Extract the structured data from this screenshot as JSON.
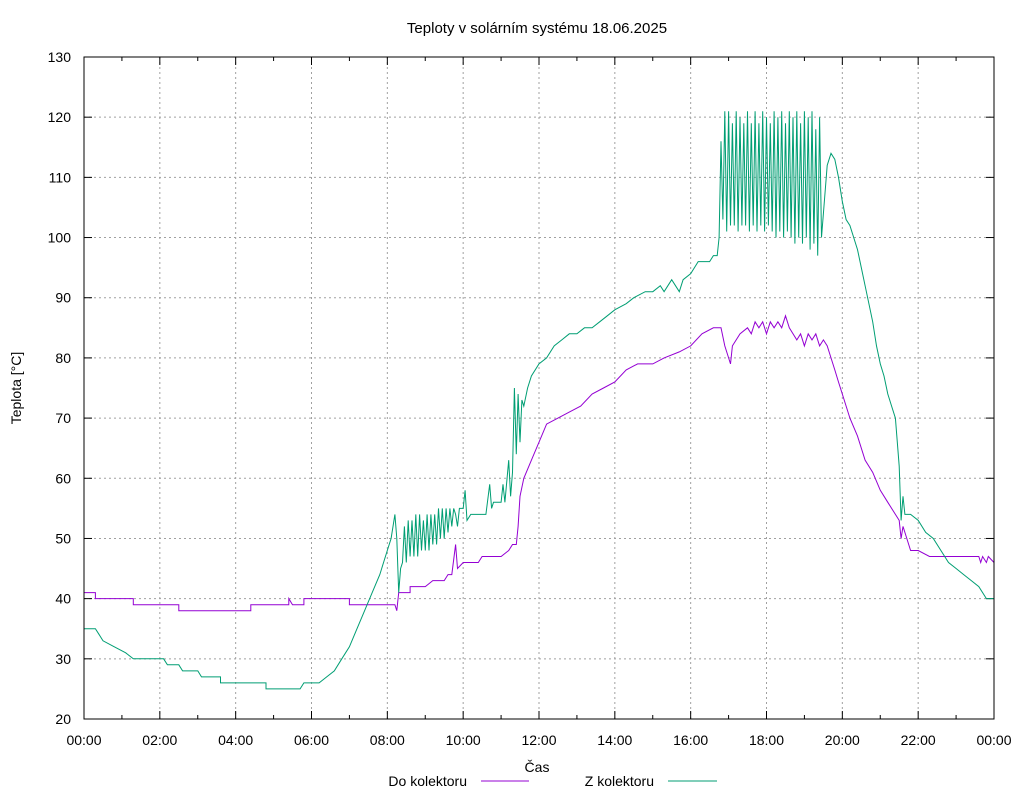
{
  "chart_data": {
    "type": "line",
    "title": "Teploty v solárním systému 18.06.2025",
    "xlabel": "Čas",
    "ylabel": "Teplota [°C]",
    "x_unit": "hours",
    "xlim": [
      0,
      24
    ],
    "ylim": [
      20,
      130
    ],
    "x_ticks": [
      0,
      2,
      4,
      6,
      8,
      10,
      12,
      14,
      16,
      18,
      20,
      22,
      24
    ],
    "x_tick_labels": [
      "00:00",
      "02:00",
      "04:00",
      "06:00",
      "08:00",
      "10:00",
      "12:00",
      "14:00",
      "16:00",
      "18:00",
      "20:00",
      "22:00",
      "00:00"
    ],
    "y_ticks": [
      20,
      30,
      40,
      50,
      60,
      70,
      80,
      90,
      100,
      110,
      120,
      130
    ],
    "grid": true,
    "legend_position": "bottom",
    "series": [
      {
        "name": "Do kolektoru",
        "color": "#9400d3",
        "points": [
          [
            0,
            41
          ],
          [
            0.3,
            41
          ],
          [
            0.3,
            40
          ],
          [
            1.3,
            40
          ],
          [
            1.3,
            39
          ],
          [
            2.5,
            39
          ],
          [
            2.5,
            38
          ],
          [
            4.4,
            38
          ],
          [
            4.4,
            39
          ],
          [
            5.4,
            39
          ],
          [
            5.4,
            40
          ],
          [
            5.5,
            39
          ],
          [
            5.8,
            39
          ],
          [
            5.8,
            40
          ],
          [
            7.0,
            40
          ],
          [
            7.0,
            39
          ],
          [
            8.2,
            39
          ],
          [
            8.25,
            38
          ],
          [
            8.3,
            41
          ],
          [
            8.6,
            41
          ],
          [
            8.6,
            42
          ],
          [
            9.0,
            42
          ],
          [
            9.2,
            43
          ],
          [
            9.5,
            43
          ],
          [
            9.6,
            44
          ],
          [
            9.7,
            44
          ],
          [
            9.8,
            49
          ],
          [
            9.85,
            45
          ],
          [
            10.0,
            46
          ],
          [
            10.4,
            46
          ],
          [
            10.5,
            47
          ],
          [
            11.0,
            47
          ],
          [
            11.2,
            48
          ],
          [
            11.3,
            49
          ],
          [
            11.4,
            49
          ],
          [
            11.45,
            52
          ],
          [
            11.5,
            57
          ],
          [
            11.6,
            60
          ],
          [
            11.8,
            63
          ],
          [
            12.0,
            66
          ],
          [
            12.2,
            69
          ],
          [
            12.5,
            70
          ],
          [
            12.8,
            71
          ],
          [
            13.1,
            72
          ],
          [
            13.4,
            74
          ],
          [
            13.7,
            75
          ],
          [
            14.0,
            76
          ],
          [
            14.3,
            78
          ],
          [
            14.6,
            79
          ],
          [
            15.0,
            79
          ],
          [
            15.3,
            80
          ],
          [
            15.7,
            81
          ],
          [
            16.0,
            82
          ],
          [
            16.3,
            84
          ],
          [
            16.6,
            85
          ],
          [
            16.8,
            85
          ],
          [
            16.9,
            82
          ],
          [
            17.0,
            80
          ],
          [
            17.05,
            79
          ],
          [
            17.1,
            82
          ],
          [
            17.3,
            84
          ],
          [
            17.5,
            85
          ],
          [
            17.6,
            84
          ],
          [
            17.7,
            86
          ],
          [
            17.8,
            85
          ],
          [
            17.9,
            86
          ],
          [
            18.0,
            84
          ],
          [
            18.1,
            86
          ],
          [
            18.2,
            85
          ],
          [
            18.3,
            86
          ],
          [
            18.4,
            85
          ],
          [
            18.5,
            87
          ],
          [
            18.6,
            85
          ],
          [
            18.7,
            84
          ],
          [
            18.8,
            83
          ],
          [
            18.9,
            84
          ],
          [
            19.0,
            82
          ],
          [
            19.1,
            84
          ],
          [
            19.2,
            83
          ],
          [
            19.3,
            84
          ],
          [
            19.4,
            82
          ],
          [
            19.5,
            83
          ],
          [
            19.6,
            82
          ],
          [
            19.7,
            80
          ],
          [
            19.8,
            78
          ],
          [
            19.9,
            76
          ],
          [
            20.0,
            74
          ],
          [
            20.2,
            70
          ],
          [
            20.4,
            67
          ],
          [
            20.6,
            63
          ],
          [
            20.8,
            61
          ],
          [
            21.0,
            58
          ],
          [
            21.2,
            56
          ],
          [
            21.4,
            54
          ],
          [
            21.5,
            53
          ],
          [
            21.55,
            50
          ],
          [
            21.6,
            52
          ],
          [
            21.8,
            48
          ],
          [
            22.0,
            48
          ],
          [
            22.3,
            47
          ],
          [
            23.6,
            47
          ],
          [
            23.65,
            46
          ],
          [
            23.7,
            47
          ],
          [
            23.8,
            46
          ],
          [
            23.85,
            47
          ],
          [
            24.0,
            46
          ]
        ]
      },
      {
        "name": "Z kolektoru",
        "color": "#009e73",
        "points": [
          [
            0,
            35
          ],
          [
            0.3,
            35
          ],
          [
            0.4,
            34
          ],
          [
            0.5,
            33
          ],
          [
            0.8,
            32
          ],
          [
            1.1,
            31
          ],
          [
            1.3,
            30
          ],
          [
            2.1,
            30
          ],
          [
            2.2,
            29
          ],
          [
            2.5,
            29
          ],
          [
            2.6,
            28
          ],
          [
            3.0,
            28
          ],
          [
            3.1,
            27
          ],
          [
            3.6,
            27
          ],
          [
            3.6,
            26
          ],
          [
            4.8,
            26
          ],
          [
            4.8,
            25
          ],
          [
            5.7,
            25
          ],
          [
            5.8,
            26
          ],
          [
            6.2,
            26
          ],
          [
            6.4,
            27
          ],
          [
            6.6,
            28
          ],
          [
            6.8,
            30
          ],
          [
            7.0,
            32
          ],
          [
            7.2,
            35
          ],
          [
            7.4,
            38
          ],
          [
            7.6,
            41
          ],
          [
            7.8,
            44
          ],
          [
            8.0,
            48
          ],
          [
            8.1,
            50
          ],
          [
            8.2,
            54
          ],
          [
            8.25,
            50
          ],
          [
            8.3,
            41
          ],
          [
            8.35,
            45
          ],
          [
            8.4,
            46
          ],
          [
            8.45,
            52
          ],
          [
            8.5,
            46
          ],
          [
            8.55,
            53
          ],
          [
            8.6,
            47
          ],
          [
            8.65,
            53
          ],
          [
            8.7,
            47
          ],
          [
            8.75,
            54
          ],
          [
            8.8,
            47
          ],
          [
            8.85,
            54
          ],
          [
            8.9,
            48
          ],
          [
            8.95,
            53
          ],
          [
            9.0,
            48
          ],
          [
            9.05,
            54
          ],
          [
            9.1,
            48
          ],
          [
            9.15,
            54
          ],
          [
            9.2,
            49
          ],
          [
            9.25,
            54
          ],
          [
            9.3,
            49
          ],
          [
            9.35,
            55
          ],
          [
            9.4,
            50
          ],
          [
            9.45,
            55
          ],
          [
            9.5,
            50
          ],
          [
            9.55,
            55
          ],
          [
            9.6,
            51
          ],
          [
            9.65,
            55
          ],
          [
            9.7,
            52
          ],
          [
            9.75,
            55
          ],
          [
            9.8,
            54
          ],
          [
            9.85,
            52
          ],
          [
            9.9,
            55
          ],
          [
            10.0,
            55
          ],
          [
            10.05,
            58
          ],
          [
            10.1,
            53
          ],
          [
            10.2,
            54
          ],
          [
            10.6,
            54
          ],
          [
            10.7,
            59
          ],
          [
            10.75,
            55
          ],
          [
            10.8,
            56
          ],
          [
            11.0,
            56
          ],
          [
            11.05,
            59
          ],
          [
            11.1,
            56
          ],
          [
            11.2,
            63
          ],
          [
            11.25,
            57
          ],
          [
            11.3,
            61
          ],
          [
            11.35,
            75
          ],
          [
            11.4,
            64
          ],
          [
            11.45,
            74
          ],
          [
            11.5,
            66
          ],
          [
            11.55,
            73
          ],
          [
            11.6,
            72
          ],
          [
            11.7,
            75
          ],
          [
            11.8,
            77
          ],
          [
            12.0,
            79
          ],
          [
            12.2,
            80
          ],
          [
            12.4,
            82
          ],
          [
            12.6,
            83
          ],
          [
            12.8,
            84
          ],
          [
            13.0,
            84
          ],
          [
            13.2,
            85
          ],
          [
            13.4,
            85
          ],
          [
            13.6,
            86
          ],
          [
            13.8,
            87
          ],
          [
            14.0,
            88
          ],
          [
            14.3,
            89
          ],
          [
            14.5,
            90
          ],
          [
            14.8,
            91
          ],
          [
            15.0,
            91
          ],
          [
            15.2,
            92
          ],
          [
            15.3,
            91
          ],
          [
            15.4,
            92
          ],
          [
            15.5,
            93
          ],
          [
            15.6,
            92
          ],
          [
            15.7,
            91
          ],
          [
            15.8,
            93
          ],
          [
            16.0,
            94
          ],
          [
            16.2,
            96
          ],
          [
            16.5,
            96
          ],
          [
            16.6,
            97
          ],
          [
            16.7,
            97
          ],
          [
            16.75,
            100
          ],
          [
            16.8,
            116
          ],
          [
            16.85,
            103
          ],
          [
            16.9,
            121
          ],
          [
            16.95,
            101
          ],
          [
            17.0,
            121
          ],
          [
            17.05,
            102
          ],
          [
            17.1,
            119
          ],
          [
            17.15,
            102
          ],
          [
            17.2,
            121
          ],
          [
            17.25,
            101
          ],
          [
            17.3,
            120
          ],
          [
            17.35,
            102
          ],
          [
            17.4,
            119
          ],
          [
            17.45,
            102
          ],
          [
            17.5,
            121
          ],
          [
            17.55,
            101
          ],
          [
            17.6,
            119
          ],
          [
            17.65,
            102
          ],
          [
            17.7,
            121
          ],
          [
            17.75,
            101
          ],
          [
            17.8,
            119
          ],
          [
            17.85,
            102
          ],
          [
            17.9,
            121
          ],
          [
            17.95,
            101
          ],
          [
            18.0,
            120
          ],
          [
            18.05,
            102
          ],
          [
            18.1,
            119
          ],
          [
            18.15,
            101
          ],
          [
            18.2,
            121
          ],
          [
            18.25,
            100
          ],
          [
            18.3,
            120
          ],
          [
            18.35,
            101
          ],
          [
            18.4,
            121
          ],
          [
            18.45,
            100
          ],
          [
            18.5,
            119
          ],
          [
            18.55,
            101
          ],
          [
            18.6,
            121
          ],
          [
            18.65,
            100
          ],
          [
            18.7,
            120
          ],
          [
            18.75,
            99
          ],
          [
            18.8,
            121
          ],
          [
            18.85,
            100
          ],
          [
            18.9,
            119
          ],
          [
            18.95,
            99
          ],
          [
            19.0,
            121
          ],
          [
            19.05,
            100
          ],
          [
            19.1,
            120
          ],
          [
            19.15,
            98
          ],
          [
            19.2,
            121
          ],
          [
            19.25,
            99
          ],
          [
            19.3,
            118
          ],
          [
            19.35,
            97
          ],
          [
            19.4,
            120
          ],
          [
            19.45,
            100
          ],
          [
            19.5,
            104
          ],
          [
            19.6,
            112
          ],
          [
            19.7,
            114
          ],
          [
            19.8,
            113
          ],
          [
            19.9,
            110
          ],
          [
            20.0,
            106
          ],
          [
            20.1,
            103
          ],
          [
            20.2,
            102
          ],
          [
            20.3,
            100
          ],
          [
            20.4,
            98
          ],
          [
            20.5,
            95
          ],
          [
            20.6,
            92
          ],
          [
            20.7,
            89
          ],
          [
            20.8,
            86
          ],
          [
            20.9,
            82
          ],
          [
            21.0,
            79
          ],
          [
            21.1,
            77
          ],
          [
            21.2,
            74
          ],
          [
            21.3,
            72
          ],
          [
            21.4,
            70
          ],
          [
            21.5,
            62
          ],
          [
            21.55,
            53
          ],
          [
            21.6,
            57
          ],
          [
            21.65,
            54
          ],
          [
            21.8,
            54
          ],
          [
            22.0,
            53
          ],
          [
            22.2,
            51
          ],
          [
            22.4,
            50
          ],
          [
            22.6,
            48
          ],
          [
            22.8,
            46
          ],
          [
            23.0,
            45
          ],
          [
            23.2,
            44
          ],
          [
            23.4,
            43
          ],
          [
            23.6,
            42
          ],
          [
            23.8,
            40
          ],
          [
            24.0,
            40
          ]
        ]
      }
    ]
  }
}
